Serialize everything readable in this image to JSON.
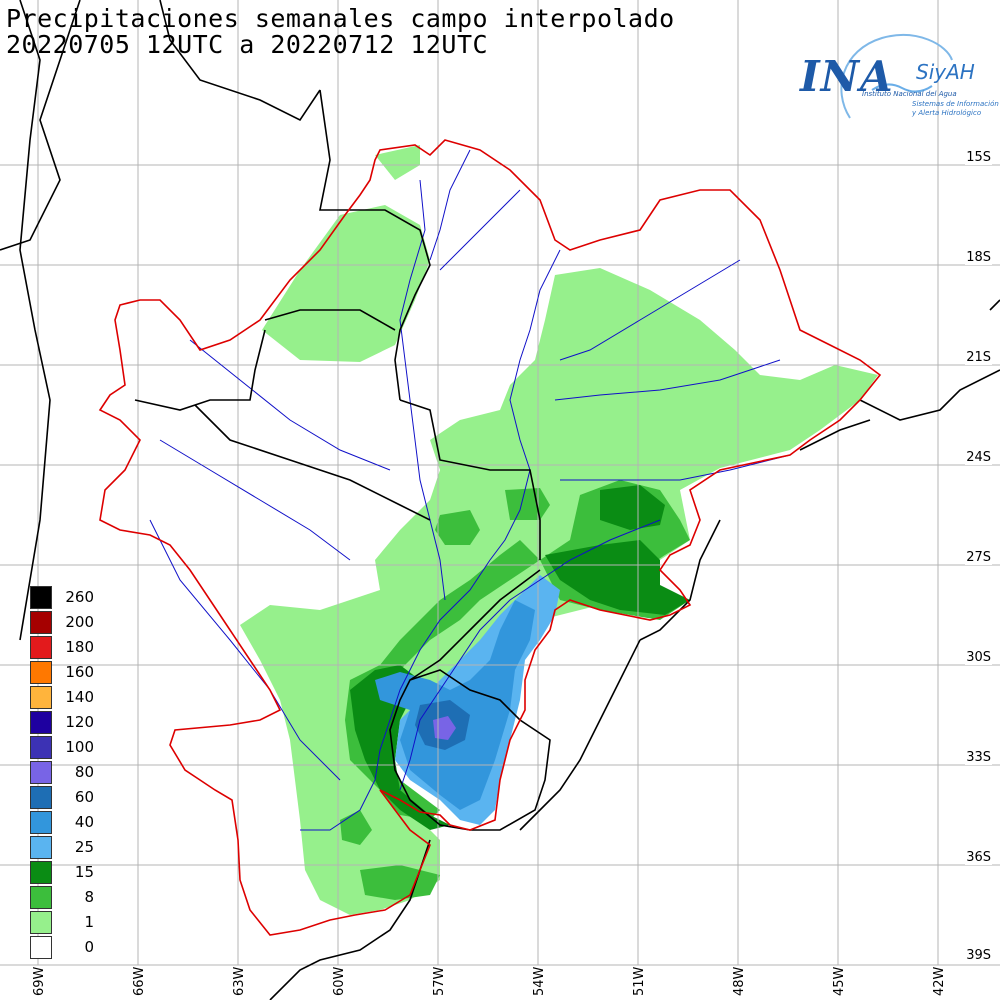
{
  "title": {
    "line1": "Precipitaciones semanales campo interpolado",
    "line2": "20220705 12UTC a 20220712 12UTC"
  },
  "logo": {
    "ina": "INA",
    "siyah": "SiyAH",
    "org": "Instituto Nacional del Agua",
    "system_line1": "Sistemas de Información",
    "system_line2": "y Alerta Hidrológico"
  },
  "latitudes": [
    "15S",
    "18S",
    "21S",
    "24S",
    "27S",
    "30S",
    "33S",
    "36S",
    "39S"
  ],
  "longitudes": [
    "69W",
    "66W",
    "63W",
    "60W",
    "57W",
    "54W",
    "51W",
    "48W",
    "45W",
    "42W"
  ],
  "legend": [
    {
      "label": "260",
      "color": "#000000"
    },
    {
      "label": "200",
      "color": "#a50000"
    },
    {
      "label": "180",
      "color": "#e31a1c"
    },
    {
      "label": "160",
      "color": "#ff7800"
    },
    {
      "label": "140",
      "color": "#ffb43c"
    },
    {
      "label": "120",
      "color": "#1e00a0"
    },
    {
      "label": "100",
      "color": "#3c32b4"
    },
    {
      "label": "80",
      "color": "#7864e6"
    },
    {
      "label": "60",
      "color": "#1e6eb4"
    },
    {
      "label": "40",
      "color": "#3296dc"
    },
    {
      "label": "25",
      "color": "#5ab4f0"
    },
    {
      "label": "15",
      "color": "#0a8c14"
    },
    {
      "label": "8",
      "color": "#3cbe3c"
    },
    {
      "label": "1",
      "color": "#96f08c"
    },
    {
      "label": "0",
      "color": "#ffffff"
    }
  ],
  "colors": {
    "basin_border": "#dd0000",
    "rivers": "#1010c8",
    "country_border": "#000000",
    "grid": "#b4b4b4"
  }
}
